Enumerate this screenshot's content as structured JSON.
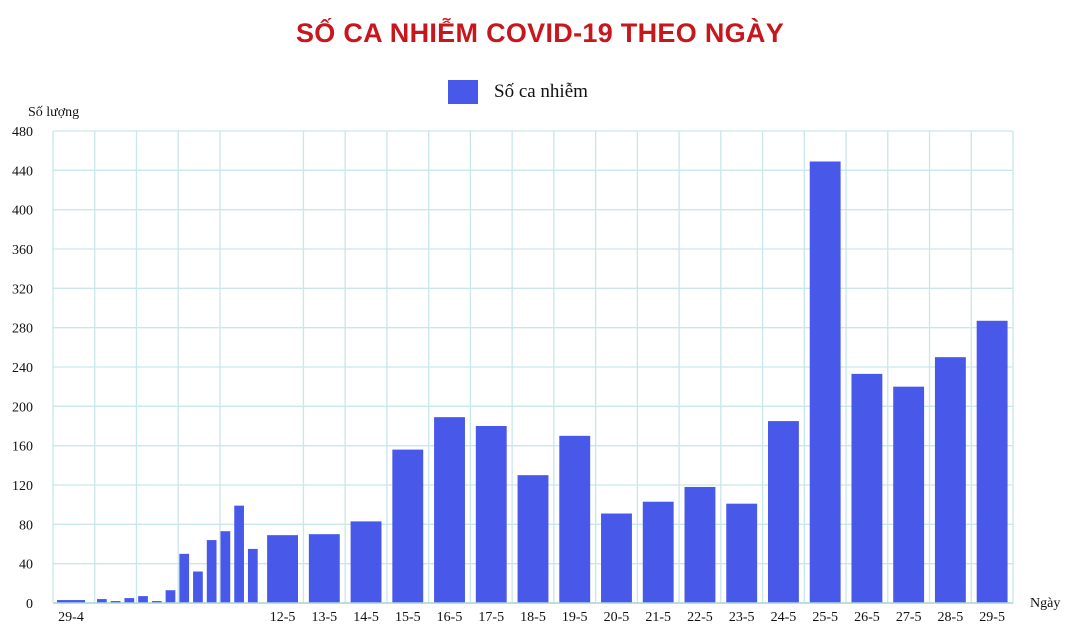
{
  "chart_data": {
    "type": "bar",
    "title": "SỐ CA NHIỄM COVID-19 THEO NGÀY",
    "ylabel": "Số lượng",
    "xlabel": "Ngày",
    "ylim": [
      0,
      480
    ],
    "yticks": [
      0,
      40,
      80,
      120,
      160,
      200,
      240,
      280,
      320,
      360,
      400,
      440,
      480
    ],
    "grid": true,
    "legend_position": "top-center",
    "series": [
      {
        "name": "Số ca nhiễm",
        "color": "#4859ea",
        "early_values": [
          3,
          4,
          2,
          5,
          7,
          2,
          13,
          50,
          32,
          64,
          73,
          99,
          55
        ],
        "categories": [
          "12-5",
          "13-5",
          "14-5",
          "15-5",
          "16-5",
          "17-5",
          "18-5",
          "19-5",
          "20-5",
          "21-5",
          "22-5",
          "23-5",
          "24-5",
          "25-5",
          "26-5",
          "27-5",
          "28-5",
          "29-5"
        ],
        "values": [
          69,
          70,
          83,
          156,
          189,
          180,
          130,
          170,
          91,
          103,
          118,
          101,
          185,
          449,
          233,
          220,
          250,
          287
        ]
      }
    ],
    "first_label": "29-4"
  }
}
